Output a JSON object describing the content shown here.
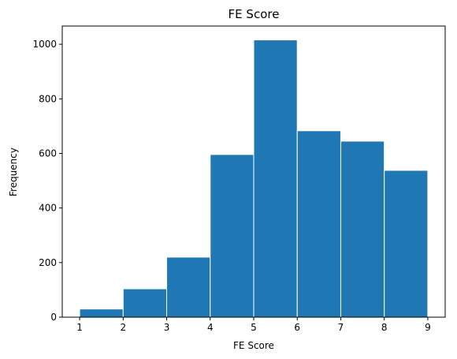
{
  "chart_data": {
    "type": "bar",
    "title": "FE Score",
    "xlabel": "FE Score",
    "ylabel": "Frequency",
    "bins": [
      {
        "x0": 1,
        "x1": 2,
        "count": 30
      },
      {
        "x0": 2,
        "x1": 3,
        "count": 104
      },
      {
        "x0": 3,
        "x1": 4,
        "count": 220
      },
      {
        "x0": 4,
        "x1": 5,
        "count": 596
      },
      {
        "x0": 5,
        "x1": 6,
        "count": 1016
      },
      {
        "x0": 6,
        "x1": 7,
        "count": 683
      },
      {
        "x0": 7,
        "x1": 8,
        "count": 645
      },
      {
        "x0": 8,
        "x1": 9,
        "count": 538
      }
    ],
    "xlim": [
      0.6,
      9.4
    ],
    "ylim": [
      0,
      1066.8
    ],
    "xticks": [
      1,
      2,
      3,
      4,
      5,
      6,
      7,
      8,
      9
    ],
    "yticks": [
      0,
      200,
      400,
      600,
      800,
      1000
    ],
    "bar_color": "#1f77b4",
    "edge_color": "#ffffff",
    "grid": false,
    "legend": "none"
  }
}
